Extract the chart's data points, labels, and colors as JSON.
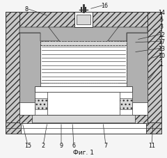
{
  "title": "Фиг. 1",
  "bg_color": "#f5f5f5",
  "wall_color": "#c8c8c8",
  "gray_color": "#b0b0b0",
  "dark_gray": "#888888",
  "light_gray": "#d8d8d8",
  "white": "#ffffff",
  "line_color": "#333333",
  "label_color": "#111111"
}
